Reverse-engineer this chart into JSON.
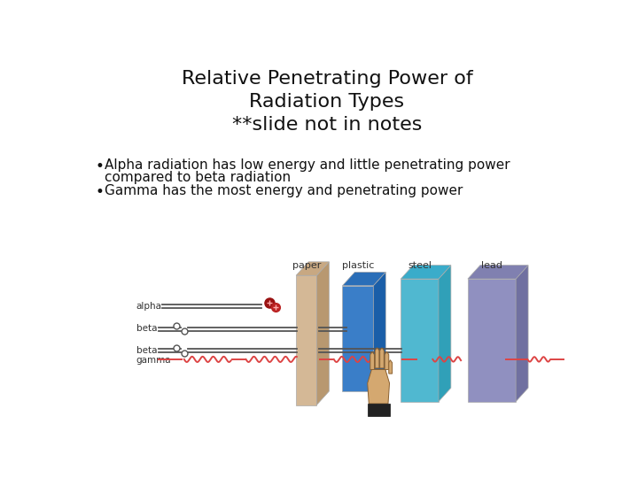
{
  "title_line1": "Relative Penetrating Power of",
  "title_line2": "Radiation Types",
  "title_line3": "**slide not in notes",
  "bullet1_line1": "Alpha radiation has low energy and little penetrating power",
  "bullet1_line2": "compared to beta radiation",
  "bullet2": "Gamma has the most energy and penetrating power",
  "bg_color": "#ffffff",
  "title_color": "#111111",
  "text_color": "#111111",
  "title_fontsize": 16,
  "body_fontsize": 11,
  "paper_color": "#d4b896",
  "paper_side_color": "#b89870",
  "plastic_color": "#3a7ec8",
  "plastic_side_color": "#1a5ea8",
  "steel_color": "#50b8d0",
  "steel_side_color": "#30a0b8",
  "lead_color": "#9090c0",
  "lead_side_color": "#7070a0",
  "gamma_color": "#dd4444",
  "line_color": "#555555",
  "alpha_color": "#cc2222",
  "hand_color": "#d4a870",
  "hand_edge_color": "#8a6030",
  "diag_labels": [
    "paper",
    "plastic",
    "steel",
    "lead"
  ],
  "rad_names": [
    "alpha",
    "beta",
    "beta",
    "gamma"
  ]
}
